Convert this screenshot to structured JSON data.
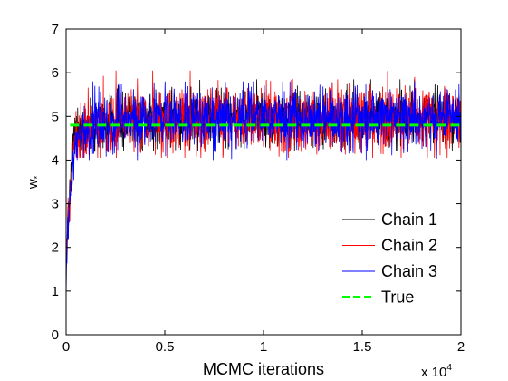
{
  "chart_data": {
    "type": "line",
    "title": "",
    "xlabel": "MCMC iterations",
    "ylabel": "w",
    "ylabel_subscript": "*",
    "x_multiplier_label": "x 10",
    "x_multiplier_exponent": "4",
    "xlim": [
      0,
      2
    ],
    "ylim": [
      0,
      7
    ],
    "x_ticks": [
      0,
      0.5,
      1,
      1.5,
      2
    ],
    "x_tick_labels": [
      "0",
      "0.5",
      "1",
      "1.5",
      "2"
    ],
    "y_ticks": [
      0,
      1,
      2,
      3,
      4,
      5,
      6,
      7
    ],
    "y_tick_labels": [
      "0",
      "1",
      "2",
      "3",
      "4",
      "5",
      "6",
      "7"
    ],
    "grid": false,
    "legend_position": "bottom-right",
    "series": [
      {
        "name": "Chain 1",
        "color": "#000000",
        "style": "solid",
        "start_value": 1.2,
        "burn_in_end_x": 0.04,
        "stationary_mean": 4.95,
        "band_low": 4.2,
        "band_high": 5.85
      },
      {
        "name": "Chain 2",
        "color": "#ff0000",
        "style": "solid",
        "start_value": 1.5,
        "burn_in_end_x": 0.05,
        "stationary_mean": 4.95,
        "band_low": 4.05,
        "band_high": 6.05
      },
      {
        "name": "Chain 3",
        "color": "#0000ff",
        "style": "solid",
        "start_value": 1.1,
        "burn_in_end_x": 0.05,
        "stationary_mean": 4.95,
        "band_low": 4.0,
        "band_high": 5.8
      },
      {
        "name": "True",
        "color": "#00ff00",
        "style": "dashed",
        "value": 4.8,
        "x_start": 0.02,
        "x_end": 2
      }
    ]
  }
}
